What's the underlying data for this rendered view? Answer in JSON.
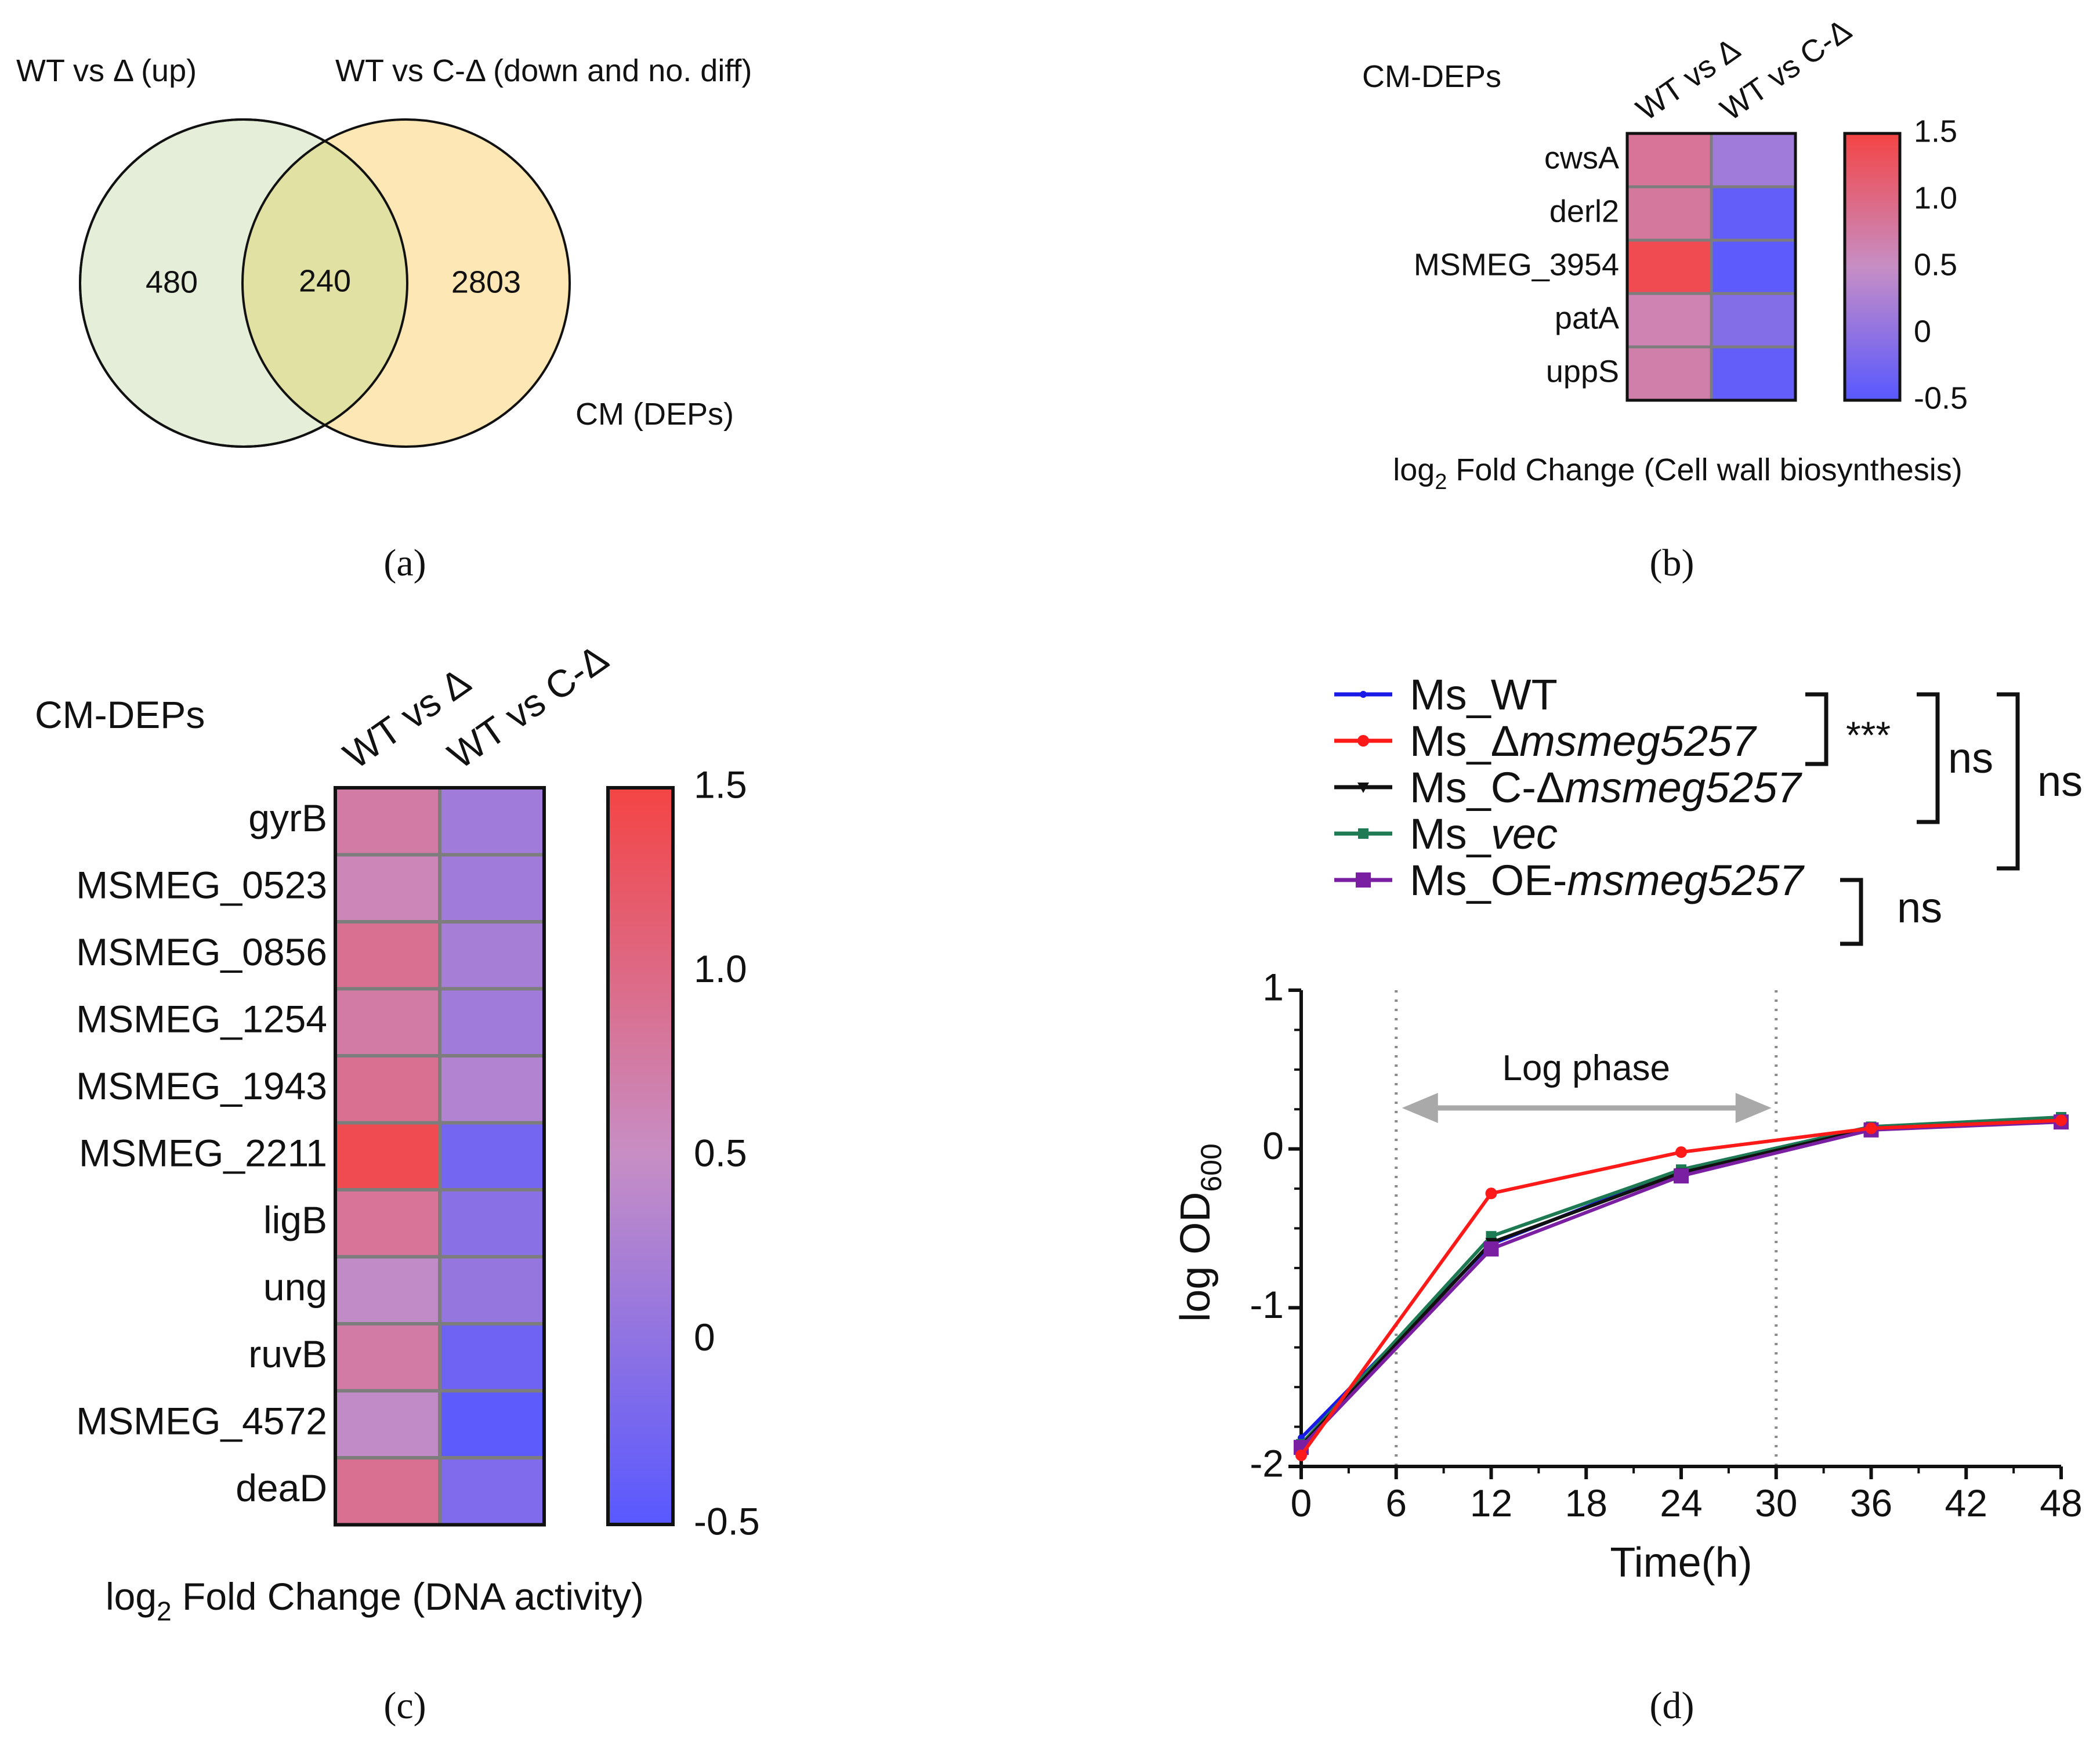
{
  "panels": [
    {
      "id": "a",
      "label": "(a)"
    },
    {
      "id": "b",
      "label": "(b)"
    },
    {
      "id": "c",
      "label": "(c)"
    },
    {
      "id": "d",
      "label": "(d)"
    }
  ],
  "colors": {
    "venn_left": "#e4eed9",
    "venn_right": "#fde7b4",
    "venn_overlap": "#e1e1a3",
    "heat_low": "#5858ff",
    "heat_mid": "#c78ec5",
    "heat_high": "#f44444",
    "wt": "#1a1ae6",
    "delta": "#ff1a1a",
    "comp": "#111111",
    "vec": "#1e7a52",
    "oe": "#7a1fa2",
    "log_arrow": "#a9a9a9"
  },
  "venn": {
    "left_title": "WT vs Δ (up)",
    "right_title": "WT vs C-Δ (down and no. diff)",
    "bottom_label": "CM (DEPs)",
    "left_only": "480",
    "overlap": "240",
    "right_only": "2803"
  },
  "chart_data": [
    {
      "type": "heatmap",
      "panel": "b",
      "title": "CM-DEPs",
      "columns": [
        "WT vs Δ",
        "WT vs C-Δ"
      ],
      "rows": [
        "cwsA",
        "derl2",
        "MSMEG_3954",
        "patA",
        "uppS"
      ],
      "values": [
        [
          0.85,
          0.15
        ],
        [
          0.8,
          -0.4
        ],
        [
          1.4,
          -0.45
        ],
        [
          0.65,
          -0.1
        ],
        [
          0.7,
          -0.4
        ]
      ],
      "colorbar": {
        "min": -0.5,
        "max": 1.5,
        "ticks": [
          "1.5",
          "1.0",
          "0.5",
          "0",
          "-0.5"
        ]
      },
      "xlabel_prefix": "log",
      "xlabel_sub": "2",
      "xlabel_rest": " Fold Change (Cell wall biosynthesis)"
    },
    {
      "type": "heatmap",
      "panel": "c",
      "title": "CM-DEPs",
      "columns": [
        "WT vs Δ",
        "WT vs C-Δ"
      ],
      "rows": [
        "gyrB",
        "MSMEG_0523",
        "MSMEG_0856",
        "MSMEG_1254",
        "MSMEG_1943",
        "MSMEG_2211",
        "ligB",
        "ung",
        "ruvB",
        "MSMEG_4572",
        "deaD"
      ],
      "values": [
        [
          0.75,
          0.15
        ],
        [
          0.6,
          0.15
        ],
        [
          0.9,
          0.2
        ],
        [
          0.75,
          0.15
        ],
        [
          0.9,
          0.3
        ],
        [
          1.4,
          -0.25
        ],
        [
          0.85,
          -0.05
        ],
        [
          0.45,
          0.05
        ],
        [
          0.75,
          -0.3
        ],
        [
          0.45,
          -0.45
        ],
        [
          0.9,
          -0.15
        ]
      ],
      "colorbar": {
        "min": -0.5,
        "max": 1.5,
        "ticks": [
          "1.5",
          "1.0",
          "0.5",
          "0",
          "-0.5"
        ]
      },
      "xlabel_prefix": "log",
      "xlabel_sub": "2",
      "xlabel_rest": " Fold Change (DNA activity)"
    },
    {
      "type": "line",
      "panel": "d",
      "x": [
        0,
        12,
        24,
        36,
        48
      ],
      "xticks": [
        0,
        6,
        12,
        18,
        24,
        30,
        36,
        42,
        48
      ],
      "yticks": [
        1,
        0,
        -1,
        -2
      ],
      "xlim": [
        0,
        48
      ],
      "ylim": [
        -2,
        1
      ],
      "xlabel": "Time(h)",
      "ylabel_prefix": "log OD",
      "ylabel_sub": "600",
      "vlines": [
        6,
        30
      ],
      "phase_label": "Log phase",
      "series": [
        {
          "key": "wt",
          "plain": "Ms_WT",
          "ital": "",
          "values": [
            -1.82,
            -0.6,
            -0.13,
            0.14,
            0.19
          ]
        },
        {
          "key": "delta",
          "plain": "Ms_Δ",
          "ital": "msmeg5257",
          "values": [
            -1.93,
            -0.28,
            -0.02,
            0.13,
            0.18
          ]
        },
        {
          "key": "comp",
          "plain": "Ms_C-Δ",
          "ital": "msmeg5257",
          "values": [
            -1.87,
            -0.59,
            -0.15,
            0.13,
            0.18
          ]
        },
        {
          "key": "vec",
          "plain": "Ms_",
          "ital": "vec",
          "values": [
            -1.86,
            -0.55,
            -0.13,
            0.14,
            0.2
          ]
        },
        {
          "key": "oe",
          "plain": "Ms_OE-",
          "ital": "msmeg5257",
          "values": [
            -1.88,
            -0.63,
            -0.17,
            0.12,
            0.17
          ]
        }
      ],
      "significance": [
        {
          "label": "***"
        },
        {
          "label": "ns"
        },
        {
          "label": "ns"
        },
        {
          "label": "ns"
        }
      ]
    }
  ]
}
